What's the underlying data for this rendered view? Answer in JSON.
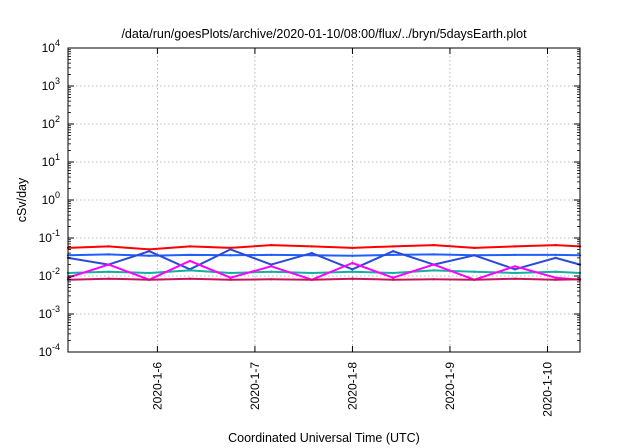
{
  "chart_data": {
    "type": "line",
    "title": "/data/run/goesPlots/archive/2020-01-10/08:00/flux/../bryn/5daysEarth.plot",
    "xlabel": "Coordinated Universal Time (UTC)",
    "ylabel": "cSv/day",
    "yscale": "log",
    "ylim": [
      0.0001,
      10000
    ],
    "y_ticks": [
      {
        "value": 0.0001,
        "base": "10",
        "exp": "-4"
      },
      {
        "value": 0.001,
        "base": "10",
        "exp": "-3"
      },
      {
        "value": 0.01,
        "base": "10",
        "exp": "-2"
      },
      {
        "value": 0.1,
        "base": "10",
        "exp": "-1"
      },
      {
        "value": 1,
        "base": "10",
        "exp": "0"
      },
      {
        "value": 10,
        "base": "10",
        "exp": "1"
      },
      {
        "value": 100,
        "base": "10",
        "exp": "2"
      },
      {
        "value": 1000,
        "base": "10",
        "exp": "3"
      },
      {
        "value": 10000,
        "base": "10",
        "exp": "4"
      }
    ],
    "xlim": [
      "2020-01-05T02:00",
      "2020-01-10T08:00"
    ],
    "x_ticks": [
      {
        "value": "2020-01-06T00:00",
        "label": "2020-1-6"
      },
      {
        "value": "2020-01-07T00:00",
        "label": "2020-1-7"
      },
      {
        "value": "2020-01-08T00:00",
        "label": "2020-1-8"
      },
      {
        "value": "2020-01-09T00:00",
        "label": "2020-1-9"
      },
      {
        "value": "2020-01-10T00:00",
        "label": "2020-1-10"
      }
    ],
    "grid": true,
    "legend": "none",
    "series": [
      {
        "color": "#ff0000",
        "x": [
          "2020-01-05T02:00",
          "2020-01-05T12:00",
          "2020-01-05T22:00",
          "2020-01-06T08:00",
          "2020-01-06T18:00",
          "2020-01-07T04:00",
          "2020-01-07T14:00",
          "2020-01-08T00:00",
          "2020-01-08T10:00",
          "2020-01-08T20:00",
          "2020-01-09T06:00",
          "2020-01-09T16:00",
          "2020-01-10T02:00",
          "2020-01-10T08:00"
        ],
        "values": [
          0.055,
          0.06,
          0.05,
          0.06,
          0.055,
          0.065,
          0.06,
          0.055,
          0.06,
          0.065,
          0.055,
          0.06,
          0.065,
          0.06
        ]
      },
      {
        "color": "#1f5fff",
        "x": [
          "2020-01-05T02:00",
          "2020-01-05T12:00",
          "2020-01-05T22:00",
          "2020-01-06T08:00",
          "2020-01-06T18:00",
          "2020-01-07T04:00",
          "2020-01-07T14:00",
          "2020-01-08T00:00",
          "2020-01-08T10:00",
          "2020-01-08T20:00",
          "2020-01-09T06:00",
          "2020-01-09T16:00",
          "2020-01-10T02:00",
          "2020-01-10T08:00"
        ],
        "values": [
          0.035,
          0.037,
          0.034,
          0.036,
          0.035,
          0.036,
          0.035,
          0.034,
          0.036,
          0.037,
          0.035,
          0.036,
          0.036,
          0.035
        ]
      },
      {
        "color": "#2a4bd7",
        "x": [
          "2020-01-05T02:00",
          "2020-01-05T12:00",
          "2020-01-05T22:00",
          "2020-01-06T08:00",
          "2020-01-06T18:00",
          "2020-01-07T04:00",
          "2020-01-07T14:00",
          "2020-01-08T00:00",
          "2020-01-08T10:00",
          "2020-01-08T20:00",
          "2020-01-09T06:00",
          "2020-01-09T16:00",
          "2020-01-10T02:00",
          "2020-01-10T08:00"
        ],
        "values": [
          0.03,
          0.02,
          0.045,
          0.015,
          0.05,
          0.02,
          0.04,
          0.015,
          0.045,
          0.02,
          0.035,
          0.015,
          0.03,
          0.02
        ]
      },
      {
        "color": "#11b0a0",
        "x": [
          "2020-01-05T02:00",
          "2020-01-05T12:00",
          "2020-01-05T22:00",
          "2020-01-06T08:00",
          "2020-01-06T18:00",
          "2020-01-07T04:00",
          "2020-01-07T14:00",
          "2020-01-08T00:00",
          "2020-01-08T10:00",
          "2020-01-08T20:00",
          "2020-01-09T06:00",
          "2020-01-09T16:00",
          "2020-01-10T02:00",
          "2020-01-10T08:00"
        ],
        "values": [
          0.012,
          0.013,
          0.012,
          0.014,
          0.012,
          0.013,
          0.012,
          0.013,
          0.012,
          0.014,
          0.013,
          0.012,
          0.013,
          0.012
        ]
      },
      {
        "color": "#ff00ff",
        "x": [
          "2020-01-05T02:00",
          "2020-01-05T12:00",
          "2020-01-05T22:00",
          "2020-01-06T08:00",
          "2020-01-06T18:00",
          "2020-01-07T04:00",
          "2020-01-07T14:00",
          "2020-01-08T00:00",
          "2020-01-08T10:00",
          "2020-01-08T20:00",
          "2020-01-09T06:00",
          "2020-01-09T16:00",
          "2020-01-10T02:00",
          "2020-01-10T08:00"
        ],
        "values": [
          0.009,
          0.02,
          0.008,
          0.025,
          0.009,
          0.018,
          0.008,
          0.022,
          0.009,
          0.02,
          0.008,
          0.018,
          0.009,
          0.008
        ]
      },
      {
        "color": "#c2185b",
        "x": [
          "2020-01-05T02:00",
          "2020-01-05T12:00",
          "2020-01-05T22:00",
          "2020-01-06T08:00",
          "2020-01-06T18:00",
          "2020-01-07T04:00",
          "2020-01-07T14:00",
          "2020-01-08T00:00",
          "2020-01-08T10:00",
          "2020-01-08T20:00",
          "2020-01-09T06:00",
          "2020-01-09T16:00",
          "2020-01-10T02:00",
          "2020-01-10T08:00"
        ],
        "values": [
          0.008,
          0.0085,
          0.008,
          0.0085,
          0.008,
          0.0082,
          0.008,
          0.0085,
          0.008,
          0.0082,
          0.008,
          0.0085,
          0.008,
          0.0082
        ]
      }
    ]
  }
}
